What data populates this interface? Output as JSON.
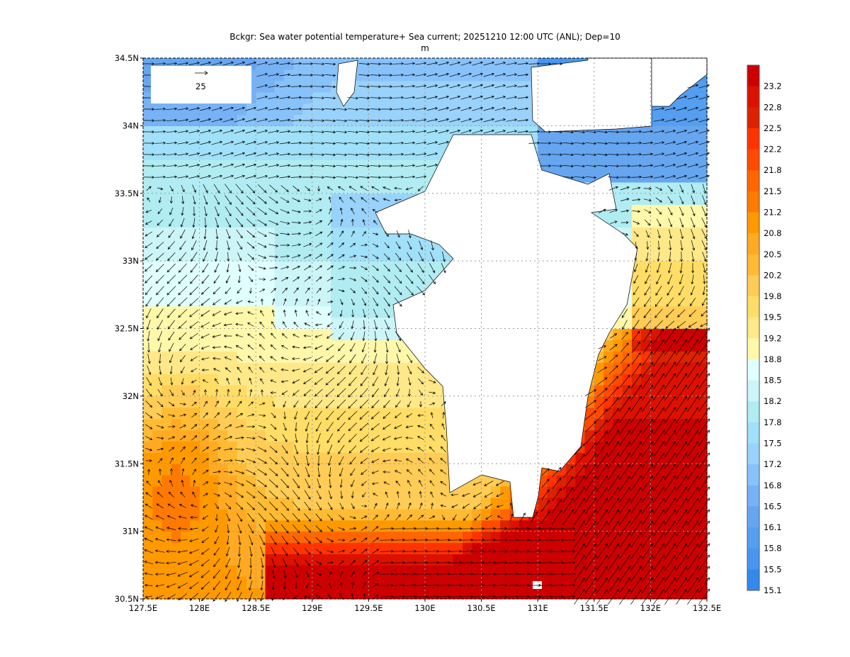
{
  "title": {
    "line1": "Bckgr: Sea water potential temperature+ Sea current; 20251210 12:00 UTC (ANL); Dep=10",
    "line2": "m"
  },
  "map": {
    "lon_range": [
      127.5,
      132.5
    ],
    "lat_range": [
      30.5,
      34.5
    ],
    "x_ticks": [
      "127.5E",
      "128E",
      "128.5E",
      "129E",
      "129.5E",
      "130E",
      "130.5E",
      "131E",
      "131.5E",
      "132E",
      "132.5E"
    ],
    "y_ticks": [
      "30.5N",
      "31N",
      "31.5N",
      "32N",
      "32.5N",
      "33N",
      "33.5N",
      "34N",
      "34.5N"
    ],
    "vector_reference": "25",
    "land_color": "#ffffff",
    "grid_color": "#999999"
  },
  "colorbar": {
    "labels": [
      "23.2",
      "22.8",
      "22.5",
      "22.2",
      "21.8",
      "21.5",
      "21.2",
      "20.8",
      "20.5",
      "20.2",
      "19.8",
      "19.5",
      "19.2",
      "18.8",
      "18.5",
      "18.2",
      "17.8",
      "17.5",
      "17.2",
      "16.8",
      "16.5",
      "16.1",
      "15.8",
      "15.5",
      "15.1"
    ],
    "colors": [
      "#cc0000",
      "#dd1100",
      "#dd2200",
      "#ff3300",
      "#ff4a00",
      "#ff6600",
      "#ff7a00",
      "#ff9900",
      "#ffaa22",
      "#ffbb33",
      "#ffcc55",
      "#ffdd66",
      "#ffe888",
      "#fff8aa",
      "#e0ffff",
      "#ccf5f8",
      "#b0ecf2",
      "#a0e0f8",
      "#99d2fa",
      "#88c2fa",
      "#77b2f6",
      "#66a6f0",
      "#559ef0",
      "#4896f0",
      "#3388ee"
    ]
  }
}
